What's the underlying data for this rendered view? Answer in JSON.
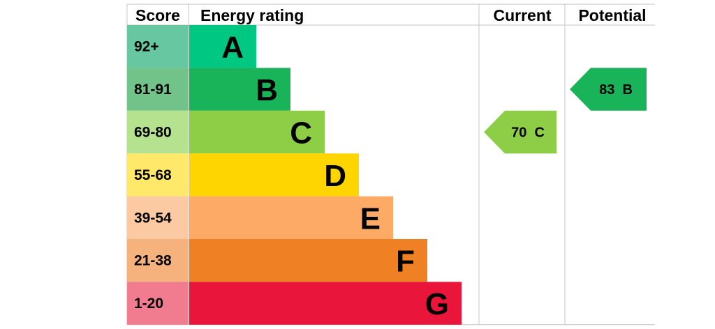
{
  "headers": {
    "score": "Score",
    "rating": "Energy rating",
    "current": "Current",
    "potential": "Potential"
  },
  "chart_data": {
    "type": "bar",
    "categories": [
      "A",
      "B",
      "C",
      "D",
      "E",
      "F",
      "G"
    ],
    "score_ranges": [
      "92+",
      "81-91",
      "69-80",
      "55-68",
      "39-54",
      "21-38",
      "1-20"
    ],
    "band_colors": [
      "#00c781",
      "#19b459",
      "#8dce46",
      "#ffd500",
      "#fcaa65",
      "#ef8023",
      "#e9153b"
    ],
    "score_colors": [
      "#66c7a0",
      "#71c389",
      "#b5e28e",
      "#ffe86a",
      "#fbcaa3",
      "#f5b27c",
      "#f27c8f"
    ],
    "current": {
      "value": 70,
      "band": "C",
      "label": "70  C",
      "color": "#8dce46"
    },
    "potential": {
      "value": 83,
      "band": "B",
      "label": "83  B",
      "color": "#19b459"
    }
  }
}
